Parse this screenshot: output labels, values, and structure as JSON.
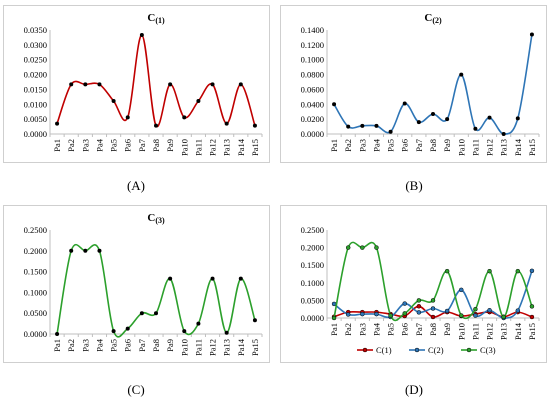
{
  "chart_data": [
    {
      "type": "line",
      "title": "C(1)",
      "title_main": "C",
      "title_sub": "(1)",
      "caption": "(A)",
      "categories": [
        "Pa1",
        "Pa2",
        "Pa3",
        "Pa4",
        "Pa5",
        "Pa6",
        "Pa7",
        "Pa8",
        "Pa9",
        "Pa10",
        "Pa11",
        "Pa12",
        "Pa13",
        "Pa14",
        "Pa15"
      ],
      "series": [
        {
          "name": "C(1)",
          "color": "#c00000",
          "values": [
            0.0035,
            0.0167,
            0.0167,
            0.0167,
            0.0111,
            0.0056,
            0.0333,
            0.0028,
            0.0167,
            0.0056,
            0.0111,
            0.0167,
            0.0035,
            0.0167,
            0.0028
          ]
        }
      ],
      "ylim": [
        0,
        0.035
      ],
      "yticks": [
        "0.0000",
        "0.0050",
        "0.0100",
        "0.0150",
        "0.0200",
        "0.0250",
        "0.0300",
        "0.0350"
      ],
      "grid": false,
      "legend": "none"
    },
    {
      "type": "line",
      "title": "C(2)",
      "title_main": "C",
      "title_sub": "(2)",
      "caption": "(B)",
      "categories": [
        "Pa1",
        "Pa2",
        "Pa3",
        "Pa4",
        "Pa5",
        "Pa6",
        "Pa7",
        "Pa8",
        "Pa9",
        "Pa10",
        "Pa11",
        "Pa12",
        "Pa13",
        "Pa14",
        "Pa15"
      ],
      "series": [
        {
          "name": "C(2)",
          "color": "#2e75b6",
          "values": [
            0.04,
            0.01,
            0.011,
            0.011,
            0.003,
            0.041,
            0.016,
            0.027,
            0.02,
            0.08,
            0.007,
            0.022,
            0.0,
            0.021,
            0.134
          ]
        }
      ],
      "ylim": [
        0,
        0.14
      ],
      "yticks": [
        "0.0000",
        "0.0200",
        "0.0400",
        "0.0600",
        "0.0800",
        "0.1000",
        "0.1200",
        "0.1400"
      ],
      "grid": false,
      "legend": "none"
    },
    {
      "type": "line",
      "title": "C(3)",
      "title_main": "C",
      "title_sub": "(3)",
      "caption": "(C)",
      "categories": [
        "Pa1",
        "Pa2",
        "Pa3",
        "Pa4",
        "Pa5",
        "Pa6",
        "Pa7",
        "Pa8",
        "Pa9",
        "Pa10",
        "Pa11",
        "Pa12",
        "Pa13",
        "Pa14",
        "Pa15"
      ],
      "series": [
        {
          "name": "C(3)",
          "color": "#2ca02c",
          "values": [
            0.0,
            0.2,
            0.2,
            0.2,
            0.007,
            0.013,
            0.05,
            0.05,
            0.133,
            0.007,
            0.025,
            0.133,
            0.003,
            0.133,
            0.033
          ]
        }
      ],
      "ylim": [
        0,
        0.25
      ],
      "yticks": [
        "0.0000",
        "0.0500",
        "0.1000",
        "0.1500",
        "0.2000",
        "0.2500"
      ],
      "grid": false,
      "legend": "none"
    },
    {
      "type": "line",
      "title": "",
      "caption": "(D)",
      "categories": [
        "Pa1",
        "Pa2",
        "Pa3",
        "Pa4",
        "Pa5",
        "Pa6",
        "Pa7",
        "Pa8",
        "Pa9",
        "Pa10",
        "Pa11",
        "Pa12",
        "Pa13",
        "Pa14",
        "Pa15"
      ],
      "series": [
        {
          "name": "C(1)",
          "color": "#c00000",
          "values": [
            0.0035,
            0.0167,
            0.0167,
            0.0167,
            0.0111,
            0.0056,
            0.0333,
            0.0028,
            0.0167,
            0.0056,
            0.0111,
            0.0167,
            0.0035,
            0.0167,
            0.0028
          ]
        },
        {
          "name": "C(2)",
          "color": "#2e75b6",
          "values": [
            0.04,
            0.01,
            0.011,
            0.011,
            0.003,
            0.041,
            0.016,
            0.027,
            0.02,
            0.08,
            0.007,
            0.022,
            0.0,
            0.021,
            0.134
          ]
        },
        {
          "name": "C(3)",
          "color": "#2ca02c",
          "values": [
            0.0,
            0.2,
            0.2,
            0.2,
            0.007,
            0.013,
            0.05,
            0.05,
            0.133,
            0.007,
            0.025,
            0.133,
            0.003,
            0.133,
            0.033
          ]
        }
      ],
      "ylim": [
        0,
        0.25
      ],
      "yticks": [
        "0.0000",
        "0.0500",
        "0.1000",
        "0.1500",
        "0.2000",
        "0.2500"
      ],
      "grid": false,
      "legend": "bottom"
    }
  ]
}
